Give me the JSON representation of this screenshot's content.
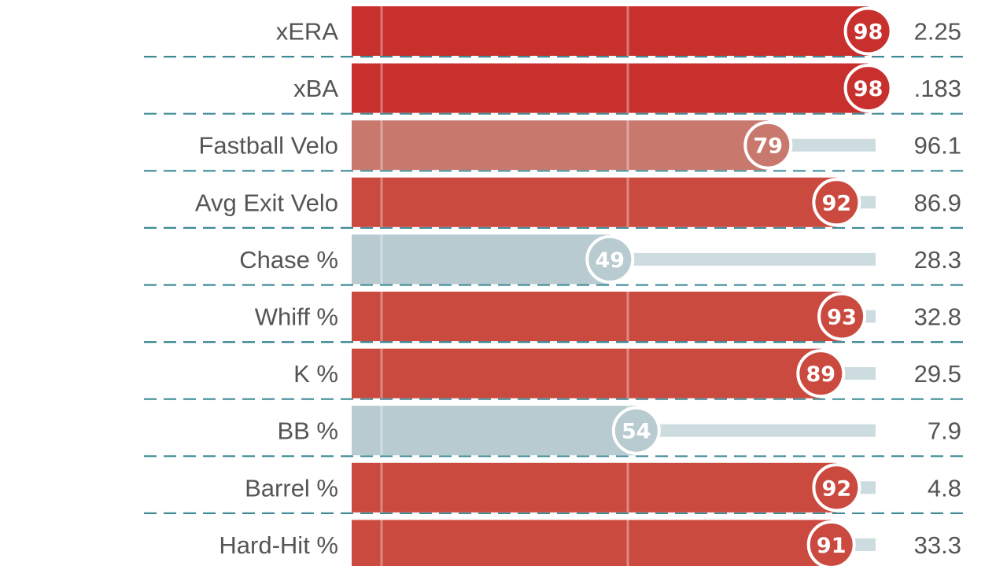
{
  "chart_data": {
    "type": "bar",
    "percentile_range": [
      0,
      100
    ],
    "categories": [
      "xERA",
      "xBA",
      "Fastball Velo",
      "Avg Exit Velo",
      "Chase %",
      "Whiff %",
      "K %",
      "BB %",
      "Barrel %",
      "Hard-Hit %"
    ],
    "percentiles": [
      98,
      98,
      79,
      92,
      49,
      93,
      89,
      54,
      92,
      91
    ],
    "values": [
      "2.25",
      ".183",
      "96.1",
      "86.9",
      "28.3",
      "32.8",
      "29.5",
      "7.9",
      "4.8",
      "33.3"
    ],
    "colors": {
      "elite": "#c8302e",
      "high": "#cb4a40",
      "above_average": "#c9786d",
      "average": "#b7cbd0",
      "track": "#cddcdf",
      "row_separator": "#3f8a96",
      "label_text": "#555555"
    }
  }
}
